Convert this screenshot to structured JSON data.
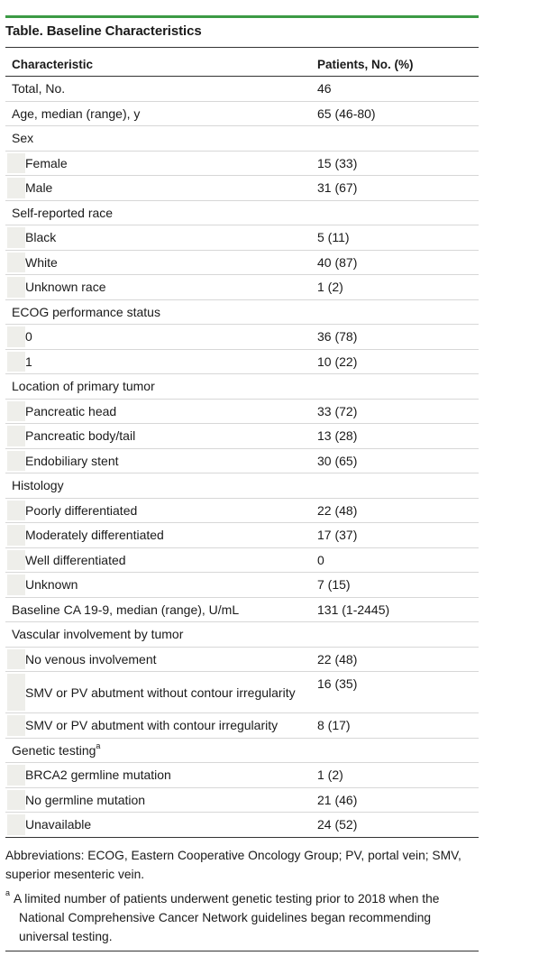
{
  "title": "Table. Baseline Characteristics",
  "headers": {
    "characteristic": "Characteristic",
    "patients": "Patients, No. (%)"
  },
  "rows": [
    {
      "label": "Total, No.",
      "value": "46"
    },
    {
      "label": "Age, median (range), y",
      "value": "65 (46-80)"
    },
    {
      "label": "Sex",
      "value": ""
    },
    {
      "label": "Female",
      "value": "15 (33)"
    },
    {
      "label": "Male",
      "value": "31 (67)"
    },
    {
      "label": "Self-reported race",
      "value": ""
    },
    {
      "label": "Black",
      "value": "5 (11)"
    },
    {
      "label": "White",
      "value": "40 (87)"
    },
    {
      "label": "Unknown race",
      "value": "1 (2)"
    },
    {
      "label": "ECOG performance status",
      "value": ""
    },
    {
      "label": "0",
      "value": "36 (78)"
    },
    {
      "label": "1",
      "value": "10 (22)"
    },
    {
      "label": "Location of primary tumor",
      "value": ""
    },
    {
      "label": "Pancreatic head",
      "value": "33 (72)"
    },
    {
      "label": "Pancreatic body/tail",
      "value": "13 (28)"
    },
    {
      "label": "Endobiliary stent",
      "value": "30 (65)"
    },
    {
      "label": "Histology",
      "value": ""
    },
    {
      "label": "Poorly differentiated",
      "value": "22 (48)"
    },
    {
      "label": "Moderately differentiated",
      "value": "17 (37)"
    },
    {
      "label": "Well differentiated",
      "value": "0"
    },
    {
      "label": "Unknown",
      "value": "7 (15)"
    },
    {
      "label": "Baseline CA 19-9, median (range), U/mL",
      "value": "131 (1-2445)"
    },
    {
      "label": "Vascular involvement by tumor",
      "value": ""
    },
    {
      "label": "No venous involvement",
      "value": "22 (48)"
    },
    {
      "label": "SMV or PV abutment without contour irregularity",
      "value": "16 (35)"
    },
    {
      "label": "SMV or PV abutment with contour irregularity",
      "value": "8 (17)"
    },
    {
      "label": "Genetic testing",
      "sup": "a",
      "value": ""
    },
    {
      "label": "BRCA2 germline mutation",
      "value": "1 (2)"
    },
    {
      "label": "No germline mutation",
      "value": "21 (46)"
    },
    {
      "label": "Unavailable",
      "value": "24 (52)"
    }
  ],
  "abbreviations": "Abbreviations: ECOG, Eastern Cooperative Oncology Group; PV, portal vein; SMV, superior mesenteric vein.",
  "footnote": {
    "marker": "a",
    "text": "A limited number of patients underwent genetic testing prior to 2018 when the National Comprehensive Cancer Network guidelines began recommending universal testing."
  }
}
